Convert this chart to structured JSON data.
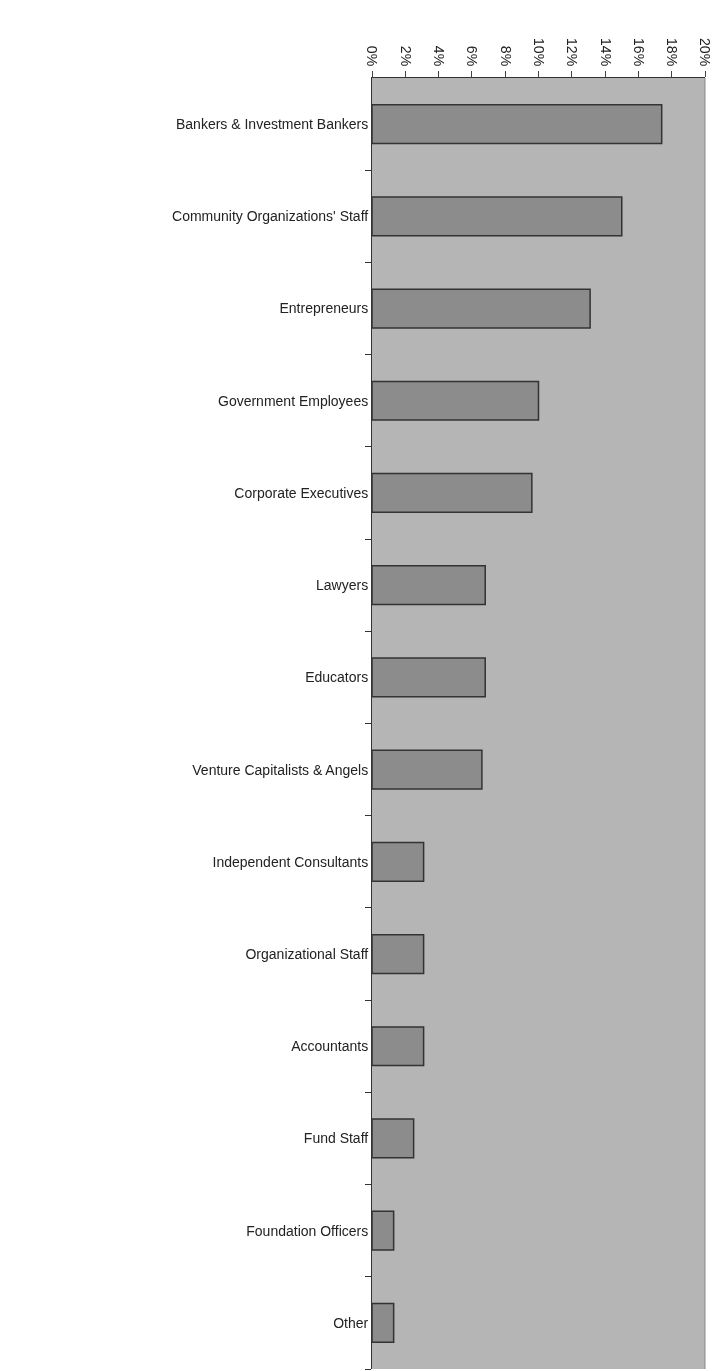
{
  "chart_data": {
    "type": "bar",
    "orientation": "horizontal",
    "categories": [
      "Bankers & Investment Bankers",
      "Community Organizations' Staff",
      "Entrepreneurs",
      "Government Employees",
      "Corporate Executives",
      "Lawyers",
      "Educators",
      "Venture Capitalists & Angels",
      "Independent Consultants",
      "Organizational Staff",
      "Accountants",
      "Fund Staff",
      "Foundation Officers",
      "Other"
    ],
    "values": [
      17.4,
      15.0,
      13.1,
      10.0,
      9.6,
      6.8,
      6.8,
      6.6,
      3.1,
      3.1,
      3.1,
      2.5,
      1.3,
      1.3
    ],
    "color": "#8c8c8c",
    "xlim": [
      0,
      20
    ],
    "xticks": [
      {
        "value": 0,
        "label": "0%"
      },
      {
        "value": 2,
        "label": "2%"
      },
      {
        "value": 4,
        "label": "4%"
      },
      {
        "value": 6,
        "label": "6%"
      },
      {
        "value": 8,
        "label": "8%"
      },
      {
        "value": 10,
        "label": "10%"
      },
      {
        "value": 12,
        "label": "12%"
      },
      {
        "value": 14,
        "label": "14%"
      },
      {
        "value": 16,
        "label": "16%"
      },
      {
        "value": 18,
        "label": "18%"
      },
      {
        "value": 20,
        "label": "20%"
      }
    ],
    "grid": false,
    "legend": false
  }
}
